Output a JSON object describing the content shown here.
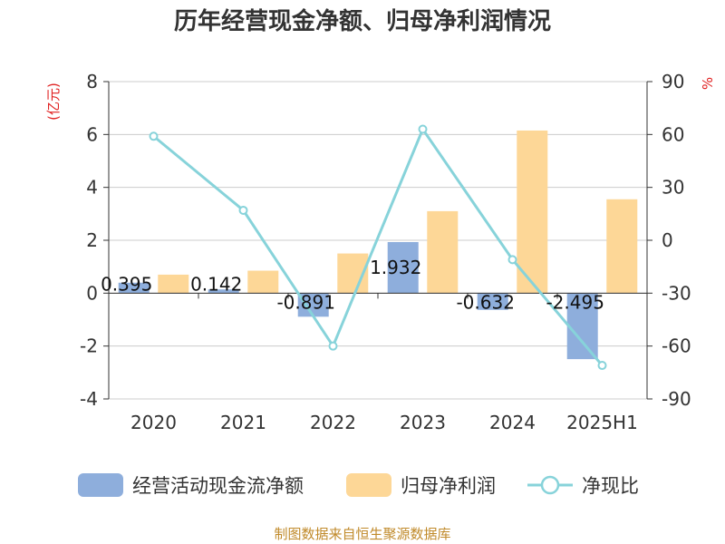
{
  "chart_data": {
    "type": "bar",
    "title": "历年经营现金净额、归母净利润情况",
    "categories": [
      "2020",
      "2021",
      "2022",
      "2023",
      "2024",
      "2025H1"
    ],
    "y_left": {
      "unit": "(亿元)",
      "ylim": [
        -4,
        8
      ],
      "ticks": [
        "8",
        "6",
        "4",
        "2",
        "0",
        "-2",
        "-4"
      ]
    },
    "y_right": {
      "unit": "%",
      "ylim": [
        -90,
        90
      ],
      "ticks": [
        "90",
        "60",
        "30",
        "0",
        "-30",
        "-60",
        "-90"
      ]
    },
    "series": [
      {
        "name": "经营活动现金流净额",
        "kind": "bar",
        "axis": "left",
        "color": "#8eaedc",
        "values": [
          0.395,
          0.142,
          -0.891,
          1.932,
          -0.632,
          -2.495
        ],
        "labels": [
          "0.395",
          "0.142",
          "-0.891",
          "1.932",
          "-0.632",
          "-2.495"
        ]
      },
      {
        "name": "归母净利润",
        "kind": "bar",
        "axis": "left",
        "color": "#fdd797",
        "values": [
          0.7,
          0.85,
          1.5,
          3.1,
          6.15,
          3.55
        ]
      },
      {
        "name": "净现比",
        "kind": "line",
        "axis": "right",
        "color": "#87d3da",
        "values": [
          59,
          17,
          -60,
          63,
          -11,
          -71
        ]
      }
    ],
    "grid": true,
    "legend_position": "bottom"
  },
  "footer": {
    "source": "制图数据来自恒生聚源数据库"
  }
}
